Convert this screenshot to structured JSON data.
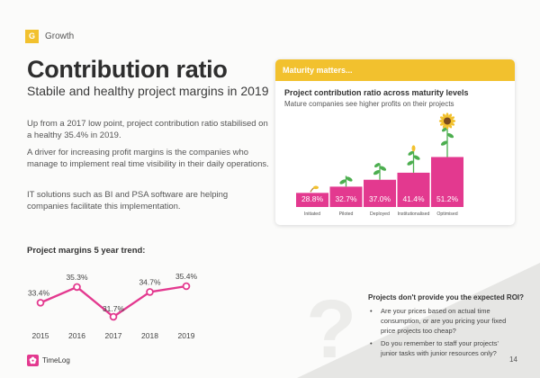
{
  "header": {
    "section_badge": "G",
    "section_label": "Growth"
  },
  "title": "Contribution ratio",
  "subtitle": "Stabile and healthy project margins in 2019",
  "paragraphs": {
    "p1": "Up from a 2017 low point, project contribution ratio stabilised on a healthy 35.4% in 2019.",
    "p2": "A driver for increasing profit margins is the companies who manage to implement real time visibility in their daily operations.",
    "p3": "IT solutions such as BI and PSA software are helping companies facilitate this implementation."
  },
  "trend": {
    "title": "Project margins 5 year trend:",
    "years": [
      "2015",
      "2016",
      "2017",
      "2018",
      "2019"
    ],
    "labels": [
      "33.4%",
      "35.3%",
      "31.7%",
      "34.7%",
      "35.4%"
    ]
  },
  "card": {
    "header": "Maturity matters...",
    "title": "Project contribution ratio across maturity levels",
    "subtitle": "Mature companies see higher profits on their projects"
  },
  "chart_data": [
    {
      "type": "line",
      "title": "Project margins 5 year trend:",
      "x": [
        "2015",
        "2016",
        "2017",
        "2018",
        "2019"
      ],
      "values": [
        33.4,
        35.3,
        31.7,
        34.7,
        35.4
      ],
      "unit": "%",
      "color": "#e3398f"
    },
    {
      "type": "bar",
      "title": "Project contribution ratio across maturity levels",
      "subtitle": "Mature companies see higher profits on their projects",
      "categories": [
        "Initiated",
        "Piloted",
        "Deployed",
        "Institutionalised",
        "Optimised"
      ],
      "values": [
        28.8,
        32.7,
        37.0,
        41.4,
        51.2
      ],
      "labels": [
        "28.8%",
        "32.7%",
        "37.0%",
        "41.4%",
        "51.2%"
      ],
      "unit": "%",
      "color": "#e3398f"
    }
  ],
  "roi": {
    "title": "Projects don't provide you the expected ROI?",
    "items": [
      "Are your prices based on actual time consumption, or are you pricing your fixed price projects too cheap?",
      "Do you remember to staff your projects' junior tasks with junior resources only?"
    ]
  },
  "logo": {
    "text": "TimeLog"
  },
  "page_number": "14",
  "colors": {
    "accent": "#f2c12e",
    "brand": "#e3398f",
    "plant_green": "#4cae4f"
  }
}
